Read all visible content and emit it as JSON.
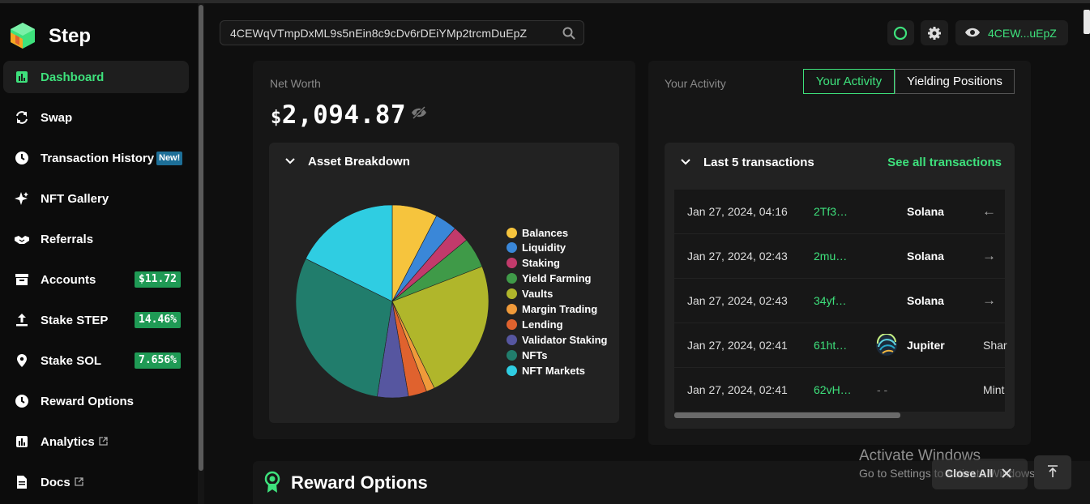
{
  "app": {
    "name": "Step"
  },
  "sidebar": {
    "items": [
      {
        "label": "Dashboard",
        "icon": "chart-bar-icon",
        "active": true
      },
      {
        "label": "Swap",
        "icon": "swap-icon"
      },
      {
        "label": "Transaction History",
        "icon": "clock-icon",
        "badge": "New!"
      },
      {
        "label": "NFT Gallery",
        "icon": "sparkle-icon"
      },
      {
        "label": "Referrals",
        "icon": "handshake-icon"
      },
      {
        "label": "Accounts",
        "icon": "archive-icon",
        "badge": "$11.72"
      },
      {
        "label": "Stake STEP",
        "icon": "upload-icon",
        "badge": "14.46%"
      },
      {
        "label": "Stake SOL",
        "icon": "location-pin-icon",
        "badge": "7.656%"
      },
      {
        "label": "Reward Options",
        "icon": "clock-icon"
      },
      {
        "label": "Analytics",
        "icon": "chart-bar-icon",
        "external": true
      },
      {
        "label": "Docs",
        "icon": "document-icon",
        "external": true
      }
    ]
  },
  "topbar": {
    "search_value": "4CEWqVTmpDxML9s5nEin8c9cDv6rDEiYMp2trcmDuEpZ",
    "wallet_short": "4CEW...uEpZ"
  },
  "networth": {
    "label": "Net Worth",
    "currency": "$",
    "value": "2,094.87"
  },
  "asset_breakdown": {
    "title": "Asset Breakdown",
    "legend": [
      {
        "name": "Balances",
        "color": "#f6c43d"
      },
      {
        "name": "Liquidity",
        "color": "#3a87d8"
      },
      {
        "name": "Staking",
        "color": "#c23a6b"
      },
      {
        "name": "Yield Farming",
        "color": "#3f9a48"
      },
      {
        "name": "Vaults",
        "color": "#b0b62b"
      },
      {
        "name": "Margin Trading",
        "color": "#f09a3a"
      },
      {
        "name": "Lending",
        "color": "#e0622e"
      },
      {
        "name": "Validator Staking",
        "color": "#5656a0"
      },
      {
        "name": "NFTs",
        "color": "#217d6c"
      },
      {
        "name": "NFT Markets",
        "color": "#2fcde2"
      }
    ]
  },
  "chart_data": {
    "type": "pie",
    "labels": [
      "Balances",
      "Liquidity",
      "Staking",
      "Yield Farming",
      "Vaults",
      "Margin Trading",
      "Lending",
      "Validator Staking",
      "NFTs",
      "NFT Markets"
    ],
    "values": [
      7.6,
      3.7,
      2.7,
      5.1,
      23.7,
      1.4,
      3.1,
      5.2,
      29.8,
      17.7
    ],
    "colors": [
      "#f6c43d",
      "#3a87d8",
      "#c23a6b",
      "#3f9a48",
      "#b0b62b",
      "#f09a3a",
      "#e0622e",
      "#5656a0",
      "#217d6c",
      "#2fcde2"
    ],
    "legend_position": "right"
  },
  "activity": {
    "label": "Your Activity",
    "tabs": [
      "Your Activity",
      "Yielding Positions"
    ],
    "last_title": "Last 5 transactions",
    "see_all": "See all transactions",
    "rows": [
      {
        "date": "Jan 27, 2024, 04:16",
        "hash": "2Tf3…",
        "platform": "Solana",
        "arrow": "←",
        "extra": ""
      },
      {
        "date": "Jan 27, 2024, 02:43",
        "hash": "2mu…",
        "platform": "Solana",
        "arrow": "→",
        "extra": ""
      },
      {
        "date": "Jan 27, 2024, 02:43",
        "hash": "34yf…",
        "platform": "Solana",
        "arrow": "→",
        "extra": ""
      },
      {
        "date": "Jan 27, 2024, 02:41",
        "hash": "61ht…",
        "platform": "Jupiter",
        "arrow": "",
        "extra": "Shar"
      },
      {
        "date": "Jan 27, 2024, 02:41",
        "hash": "62vH…",
        "platform": "- -",
        "arrow": "",
        "extra": "Mint"
      }
    ]
  },
  "reward": {
    "title": "Reward Options"
  },
  "overlay": {
    "activate_title": "Activate Windows",
    "activate_sub": "Go to Settings to activate Windows.",
    "close_all": "Close All"
  }
}
